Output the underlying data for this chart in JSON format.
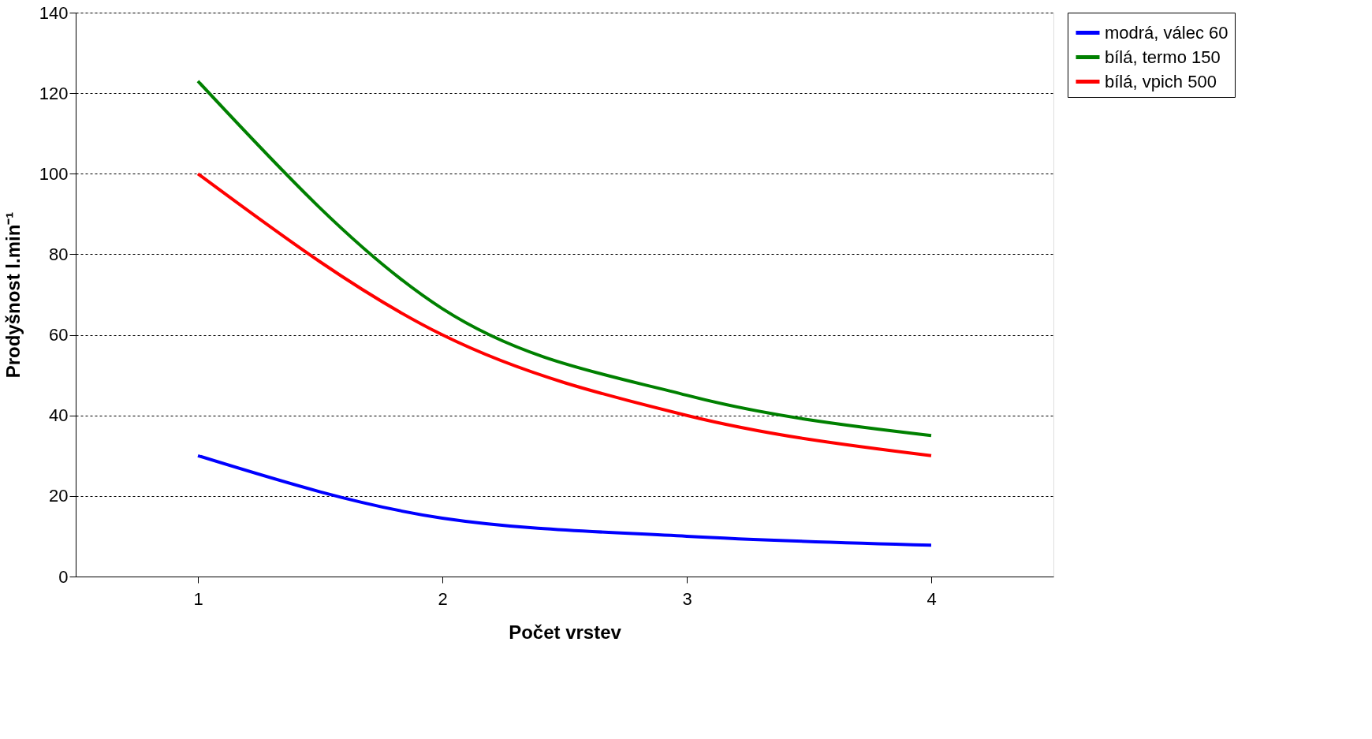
{
  "chart_data": {
    "type": "line",
    "xlabel": "Počet vrstev",
    "ylabel": "Prodyšnost  l.min⁻¹",
    "categories": [
      "1",
      "2",
      "3",
      "4"
    ],
    "series": [
      {
        "name": "modrá, válec 60",
        "color": "#0000ff",
        "values": [
          30,
          14.5,
          10,
          7.8
        ]
      },
      {
        "name": "bílá, termo 150",
        "color": "#008000",
        "values": [
          123,
          66.5,
          45,
          35
        ]
      },
      {
        "name": "bílá, vpich 500",
        "color": "#ff0000",
        "values": [
          100,
          60,
          40,
          30
        ]
      }
    ],
    "ylim": [
      0,
      140
    ],
    "yticks": [
      0,
      20,
      40,
      60,
      80,
      100,
      120,
      140
    ],
    "grid": "y",
    "legend": "right",
    "marker": "none",
    "line_style": "solid"
  }
}
